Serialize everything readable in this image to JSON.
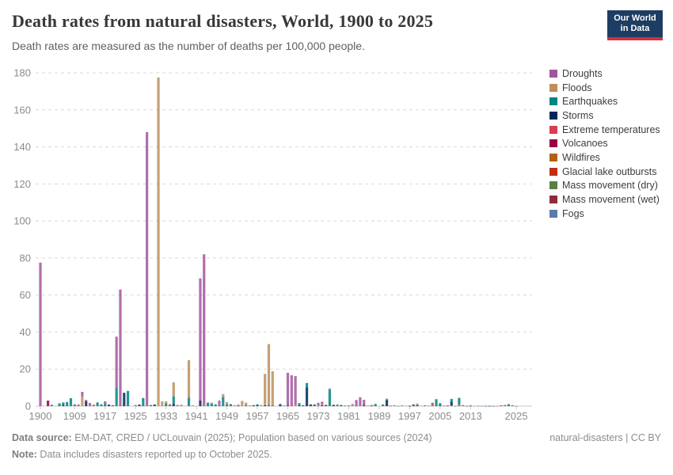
{
  "header": {
    "title": "Death rates from natural disasters, World, 1900 to 2025",
    "subtitle": "Death rates are measured as the number of deaths per 100,000 people.",
    "logo_line1": "Our World",
    "logo_line2": "in Data"
  },
  "footer": {
    "source_label": "Data source:",
    "source_text": " EM-DAT, CRED / UCLouvain (2025); Population based on various sources (2024)",
    "note_label": "Note:",
    "note_text": " Data includes disasters reported up to October 2025.",
    "rights": "natural-disasters | CC BY"
  },
  "legend": {
    "items": [
      {
        "key": "droughts",
        "label": "Droughts",
        "color": "#a2559c"
      },
      {
        "key": "floods",
        "label": "Floods",
        "color": "#bc8e5a"
      },
      {
        "key": "earthquakes",
        "label": "Earthquakes",
        "color": "#00847e"
      },
      {
        "key": "storms",
        "label": "Storms",
        "color": "#00295b"
      },
      {
        "key": "extreme_temperatures",
        "label": "Extreme temperatures",
        "color": "#d73c50"
      },
      {
        "key": "volcanoes",
        "label": "Volcanoes",
        "color": "#970046"
      },
      {
        "key": "wildfires",
        "label": "Wildfires",
        "color": "#b16214"
      },
      {
        "key": "glacial_lake_outbursts",
        "label": "Glacial lake outbursts",
        "color": "#bf3111"
      },
      {
        "key": "mass_movement_dry",
        "label": "Mass movement (dry)",
        "color": "#578145"
      },
      {
        "key": "mass_movement_wet",
        "label": "Mass movement (wet)",
        "color": "#8c2d3a"
      },
      {
        "key": "fogs",
        "label": "Fogs",
        "color": "#5b7aa8"
      }
    ]
  },
  "chart_data": {
    "type": "bar",
    "stacked": true,
    "title": "Death rates from natural disasters, World, 1900 to 2025",
    "ylabel": "deaths per 100,000 people",
    "xlim": [
      1900,
      2025
    ],
    "ylim": [
      0,
      180
    ],
    "x_ticks": [
      1900,
      1909,
      1917,
      1925,
      1933,
      1941,
      1949,
      1957,
      1965,
      1973,
      1981,
      1989,
      1997,
      2005,
      2013,
      2025
    ],
    "y_ticks": [
      0,
      20,
      40,
      60,
      80,
      100,
      120,
      140,
      160,
      180
    ],
    "grid": "dashed-horizontal",
    "legend_position": "right",
    "stack_order_bottom_to_top": [
      "fogs",
      "mass_movement_wet",
      "mass_movement_dry",
      "glacial_lake_outbursts",
      "wildfires",
      "volcanoes",
      "extreme_temperatures",
      "storms",
      "earthquakes",
      "floods",
      "droughts"
    ],
    "unlisted_years_value": 0,
    "bars": [
      {
        "year": 1900,
        "values": {
          "droughts": 77.5
        }
      },
      {
        "year": 1902,
        "values": {
          "volcanoes": 3.0
        }
      },
      {
        "year": 1903,
        "values": {
          "earthquakes": 0.7
        }
      },
      {
        "year": 1905,
        "values": {
          "earthquakes": 1.5
        }
      },
      {
        "year": 1906,
        "values": {
          "earthquakes": 1.3,
          "storms": 0.7
        }
      },
      {
        "year": 1907,
        "values": {
          "earthquakes": 2.2
        }
      },
      {
        "year": 1908,
        "values": {
          "earthquakes": 4.3
        }
      },
      {
        "year": 1909,
        "values": {
          "earthquakes": 0.6,
          "droughts": 0.4
        }
      },
      {
        "year": 1910,
        "values": {
          "droughts": 0.9
        }
      },
      {
        "year": 1911,
        "values": {
          "floods": 5.2,
          "droughts": 2.5
        }
      },
      {
        "year": 1912,
        "values": {
          "storms": 2.6,
          "droughts": 0.8
        }
      },
      {
        "year": 1913,
        "values": {
          "droughts": 1.7
        }
      },
      {
        "year": 1914,
        "values": {
          "droughts": 0.8
        }
      },
      {
        "year": 1915,
        "values": {
          "earthquakes": 2.0
        }
      },
      {
        "year": 1916,
        "values": {
          "earthquakes": 1.0
        }
      },
      {
        "year": 1917,
        "values": {
          "earthquakes": 1.6,
          "droughts": 1.0
        }
      },
      {
        "year": 1918,
        "values": {
          "storms": 0.8
        }
      },
      {
        "year": 1919,
        "values": {
          "storms": 0.4
        }
      },
      {
        "year": 1920,
        "values": {
          "earthquakes": 10.0,
          "droughts": 27.5
        }
      },
      {
        "year": 1921,
        "values": {
          "droughts": 63.0
        }
      },
      {
        "year": 1922,
        "values": {
          "storms": 7.2
        }
      },
      {
        "year": 1923,
        "values": {
          "earthquakes": 8.2
        }
      },
      {
        "year": 1925,
        "values": {
          "droughts": 0.6
        }
      },
      {
        "year": 1926,
        "values": {
          "storms": 0.8
        }
      },
      {
        "year": 1927,
        "values": {
          "earthquakes": 4.4
        }
      },
      {
        "year": 1928,
        "values": {
          "droughts": 148.0
        }
      },
      {
        "year": 1929,
        "values": {
          "earthquakes": 0.6
        }
      },
      {
        "year": 1930,
        "values": {
          "storms": 0.6,
          "volcanoes": 0.3
        }
      },
      {
        "year": 1931,
        "values": {
          "floods": 177.5
        }
      },
      {
        "year": 1932,
        "values": {
          "floods": 2.6
        }
      },
      {
        "year": 1933,
        "values": {
          "earthquakes": 1.6,
          "floods": 1.0
        }
      },
      {
        "year": 1934,
        "values": {
          "earthquakes": 0.6,
          "floods": 0.6
        }
      },
      {
        "year": 1935,
        "values": {
          "earthquakes": 4.0,
          "storms": 1.3,
          "floods": 7.5
        }
      },
      {
        "year": 1936,
        "values": {
          "droughts": 0.6
        }
      },
      {
        "year": 1937,
        "values": {
          "floods": 0.8
        }
      },
      {
        "year": 1939,
        "values": {
          "earthquakes": 4.5,
          "floods": 20.3
        }
      },
      {
        "year": 1940,
        "values": {
          "floods": 0.5
        }
      },
      {
        "year": 1942,
        "values": {
          "storms": 3.0,
          "droughts": 66.0
        }
      },
      {
        "year": 1943,
        "values": {
          "droughts": 82.0
        }
      },
      {
        "year": 1944,
        "values": {
          "earthquakes": 1.9
        }
      },
      {
        "year": 1945,
        "values": {
          "earthquakes": 1.4,
          "floods": 0.5
        }
      },
      {
        "year": 1946,
        "values": {
          "earthquakes": 1.0
        }
      },
      {
        "year": 1947,
        "values": {
          "droughts": 2.5,
          "earthquakes": 0.5
        }
      },
      {
        "year": 1948,
        "values": {
          "earthquakes": 5.0,
          "floods": 1.5
        }
      },
      {
        "year": 1949,
        "values": {
          "earthquakes": 1.0,
          "floods": 1.2
        }
      },
      {
        "year": 1950,
        "values": {
          "earthquakes": 1.1
        }
      },
      {
        "year": 1951,
        "values": {
          "floods": 0.6
        }
      },
      {
        "year": 1952,
        "values": {
          "droughts": 0.7,
          "fogs": 0.1
        }
      },
      {
        "year": 1953,
        "values": {
          "floods": 2.8
        }
      },
      {
        "year": 1954,
        "values": {
          "floods": 1.6,
          "storms": 0.3
        }
      },
      {
        "year": 1955,
        "values": {
          "floods": 0.5
        }
      },
      {
        "year": 1956,
        "values": {
          "storms": 0.5
        }
      },
      {
        "year": 1957,
        "values": {
          "earthquakes": 0.6,
          "storms": 0.4
        }
      },
      {
        "year": 1958,
        "values": {
          "floods": 0.6
        }
      },
      {
        "year": 1959,
        "values": {
          "floods": 16.9,
          "storms": 0.5
        }
      },
      {
        "year": 1960,
        "values": {
          "earthquakes": 0.7,
          "floods": 32.8
        }
      },
      {
        "year": 1961,
        "values": {
          "floods": 18.5,
          "storms": 0.3
        }
      },
      {
        "year": 1963,
        "values": {
          "storms": 0.9,
          "volcanoes": 0.2
        }
      },
      {
        "year": 1964,
        "values": {
          "earthquakes": 0.3
        }
      },
      {
        "year": 1965,
        "values": {
          "storms": 0.4,
          "droughts": 17.6
        }
      },
      {
        "year": 1966,
        "values": {
          "extreme_temperatures": 0.2,
          "droughts": 16.5
        }
      },
      {
        "year": 1967,
        "values": {
          "floods": 0.3,
          "droughts": 15.9
        }
      },
      {
        "year": 1968,
        "values": {
          "earthquakes": 1.0,
          "storms": 0.4,
          "droughts": 0.3
        }
      },
      {
        "year": 1969,
        "values": {
          "storms": 0.4
        }
      },
      {
        "year": 1970,
        "values": {
          "storms": 10.2,
          "earthquakes": 2.3
        }
      },
      {
        "year": 1971,
        "values": {
          "storms": 0.8,
          "floods": 0.3
        }
      },
      {
        "year": 1972,
        "values": {
          "earthquakes": 0.7,
          "storms": 0.3
        }
      },
      {
        "year": 1973,
        "values": {
          "extreme_temperatures": 0.3,
          "droughts": 1.5
        }
      },
      {
        "year": 1974,
        "values": {
          "storms": 0.5,
          "floods": 0.3,
          "droughts": 1.6
        }
      },
      {
        "year": 1975,
        "values": {
          "floods": 0.5,
          "storms": 0.4
        }
      },
      {
        "year": 1976,
        "values": {
          "earthquakes": 8.7,
          "droughts": 0.8
        }
      },
      {
        "year": 1977,
        "values": {
          "storms": 0.7
        }
      },
      {
        "year": 1978,
        "values": {
          "earthquakes": 0.8
        }
      },
      {
        "year": 1979,
        "values": {
          "storms": 0.4,
          "earthquakes": 0.2
        }
      },
      {
        "year": 1980,
        "values": {
          "earthquakes": 0.3
        }
      },
      {
        "year": 1981,
        "values": {
          "droughts": 0.4
        }
      },
      {
        "year": 1982,
        "values": {
          "droughts": 0.8,
          "floods": 0.3
        }
      },
      {
        "year": 1983,
        "values": {
          "extreme_temperatures": 0.2,
          "droughts": 3.1
        }
      },
      {
        "year": 1984,
        "values": {
          "droughts": 4.8
        }
      },
      {
        "year": 1985,
        "values": {
          "volcanoes": 0.5,
          "storms": 0.3,
          "droughts": 2.6
        }
      },
      {
        "year": 1986,
        "values": {
          "droughts": 0.3
        }
      },
      {
        "year": 1987,
        "values": {
          "earthquakes": 0.3,
          "floods": 0.3,
          "wildfires": 0.1
        }
      },
      {
        "year": 1988,
        "values": {
          "earthquakes": 0.9,
          "storms": 0.3
        }
      },
      {
        "year": 1990,
        "values": {
          "earthquakes": 0.9
        }
      },
      {
        "year": 1991,
        "values": {
          "earthquakes": 0.4,
          "storms": 3.3,
          "floods": 0.4
        }
      },
      {
        "year": 1992,
        "values": {
          "storms": 0.2
        }
      },
      {
        "year": 1993,
        "values": {
          "earthquakes": 0.3,
          "floods": 0.2
        }
      },
      {
        "year": 1994,
        "values": {
          "earthquakes": 0.1
        }
      },
      {
        "year": 1995,
        "values": {
          "earthquakes": 0.3
        }
      },
      {
        "year": 1996,
        "values": {
          "floods": 0.2
        }
      },
      {
        "year": 1997,
        "values": {
          "droughts": 0.2,
          "storms": 0.1
        }
      },
      {
        "year": 1998,
        "values": {
          "extreme_temperatures": 0.2,
          "storms": 0.5,
          "floods": 0.4
        }
      },
      {
        "year": 1999,
        "values": {
          "earthquakes": 0.3,
          "storms": 0.4,
          "floods": 0.7
        }
      },
      {
        "year": 2000,
        "values": {
          "floods": 0.2
        }
      },
      {
        "year": 2001,
        "values": {
          "earthquakes": 0.4
        }
      },
      {
        "year": 2002,
        "values": {
          "extreme_temperatures": 0.2
        }
      },
      {
        "year": 2003,
        "values": {
          "extreme_temperatures": 1.3,
          "earthquakes": 0.5
        }
      },
      {
        "year": 2004,
        "values": {
          "earthquakes": 3.6,
          "floods": 0.3
        }
      },
      {
        "year": 2005,
        "values": {
          "earthquakes": 1.3,
          "storms": 0.3
        }
      },
      {
        "year": 2006,
        "values": {
          "earthquakes": 0.2
        }
      },
      {
        "year": 2007,
        "values": {
          "storms": 0.2,
          "floods": 0.2
        }
      },
      {
        "year": 2008,
        "values": {
          "extreme_temperatures": 0.3,
          "storms": 2.2,
          "earthquakes": 1.4
        }
      },
      {
        "year": 2009,
        "values": {
          "earthquakes": 0.1
        }
      },
      {
        "year": 2010,
        "values": {
          "extreme_temperatures": 0.9,
          "earthquakes": 3.4,
          "floods": 0.3
        }
      },
      {
        "year": 2011,
        "values": {
          "earthquakes": 0.4,
          "floods": 0.2
        }
      },
      {
        "year": 2012,
        "values": {
          "storms": 0.1
        }
      },
      {
        "year": 2013,
        "values": {
          "storms": 0.2,
          "floods": 0.2
        }
      },
      {
        "year": 2014,
        "values": {
          "floods": 0.1
        }
      },
      {
        "year": 2015,
        "values": {
          "earthquakes": 0.15
        }
      },
      {
        "year": 2016,
        "values": {
          "earthquakes": 0.1
        }
      },
      {
        "year": 2017,
        "values": {
          "storms": 0.1
        }
      },
      {
        "year": 2018,
        "values": {
          "earthquakes": 0.1,
          "volcanoes": 0.05
        }
      },
      {
        "year": 2019,
        "values": {
          "storms": 0.1
        }
      },
      {
        "year": 2020,
        "values": {
          "extreme_temperatures": 0.1
        }
      },
      {
        "year": 2021,
        "values": {
          "extreme_temperatures": 0.3,
          "earthquakes": 0.1
        }
      },
      {
        "year": 2022,
        "values": {
          "extreme_temperatures": 0.6
        }
      },
      {
        "year": 2023,
        "values": {
          "earthquakes": 1.0,
          "floods": 0.2
        }
      },
      {
        "year": 2024,
        "values": {
          "extreme_temperatures": 0.5
        }
      },
      {
        "year": 2025,
        "values": {
          "extreme_temperatures": 0.1
        }
      }
    ]
  },
  "layout_colors": {
    "logo_bg": "#1d3d63",
    "logo_underline": "#cf323f",
    "gridline": "#d9d9d9",
    "axis_line": "#c8c8c8",
    "tick_text": "#8b8b8b"
  }
}
